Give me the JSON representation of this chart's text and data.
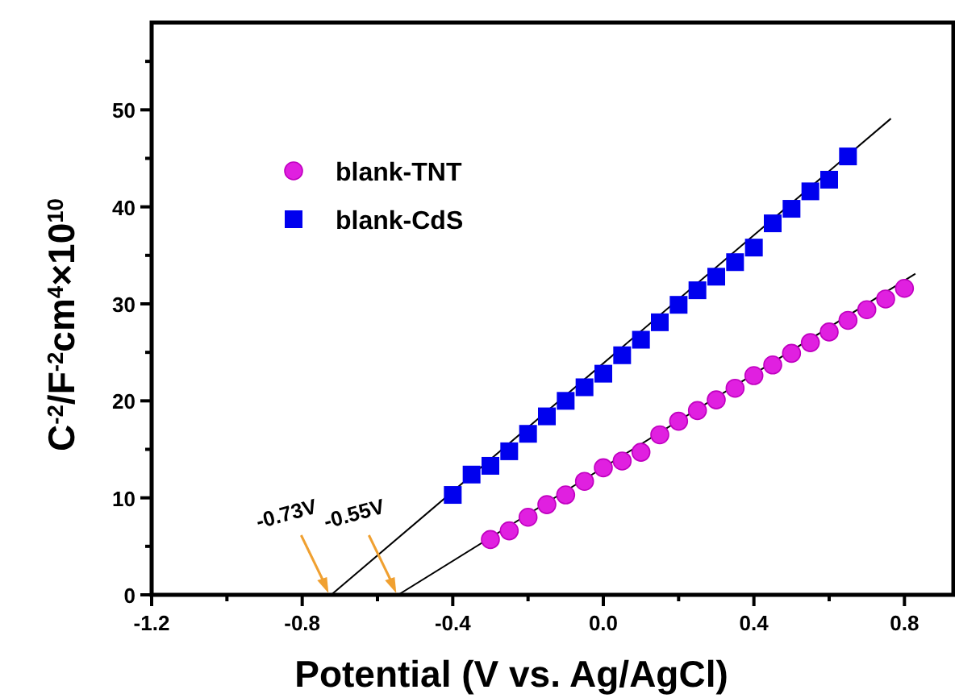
{
  "chart_data": {
    "type": "scatter",
    "xlabel": "Potential (V vs. Ag/AgCl)",
    "ylabel": "C$^{-2}$/F$^{-2}$cm$^{4}$×10$^{10}$",
    "xlim": [
      -1.2,
      0.93
    ],
    "ylim": [
      0,
      59
    ],
    "xticks": [
      -1.2,
      {
        "value": -1.0,
        "label": null
      },
      -0.8,
      {
        "value": -0.6,
        "label": null
      },
      -0.4,
      {
        "value": -0.2,
        "label": null
      },
      {
        "value": 0,
        "label": "0.0"
      },
      {
        "value": 0.2,
        "label": null
      },
      0.4,
      {
        "value": 0.6,
        "label": null
      },
      0.8
    ],
    "yticks": [
      0,
      {
        "value": 5,
        "label": null
      },
      10,
      {
        "value": 15,
        "label": null
      },
      20,
      {
        "value": 25,
        "label": null
      },
      30,
      {
        "value": 35,
        "label": null
      },
      40,
      {
        "value": 45,
        "label": null
      },
      50,
      {
        "value": 55,
        "label": null
      }
    ],
    "grid": false,
    "legend": "top left",
    "series": [
      {
        "name": "blank-TNT",
        "color": "#e020e0",
        "marker": "circle",
        "x": [
          -0.3,
          -0.25,
          -0.2,
          -0.15,
          -0.1,
          -0.05,
          0,
          0.05,
          0.1,
          0.15,
          0.2,
          0.25,
          0.3,
          0.35,
          0.4,
          0.45,
          0.5,
          0.55,
          0.6,
          0.65,
          0.7,
          0.75,
          0.8
        ],
        "values": [
          5.7,
          6.6,
          8.0,
          9.3,
          10.3,
          11.7,
          13.1,
          13.8,
          14.7,
          16.5,
          17.9,
          19.0,
          20.1,
          21.3,
          22.6,
          23.7,
          24.9,
          26.0,
          27.1,
          28.3,
          29.4,
          30.5,
          31.6
        ]
      },
      {
        "name": "blank-CdS",
        "color": "#0000ee",
        "marker": "square",
        "x": [
          -0.4,
          -0.35,
          -0.3,
          -0.25,
          -0.2,
          -0.15,
          -0.1,
          -0.05,
          0,
          0.05,
          0.1,
          0.15,
          0.2,
          0.25,
          0.3,
          0.35,
          0.4,
          0.45,
          0.5,
          0.55,
          0.6,
          0.65
        ],
        "values": [
          10.3,
          12.4,
          13.3,
          14.8,
          16.6,
          18.4,
          20.0,
          21.4,
          22.8,
          24.7,
          26.3,
          28.1,
          29.9,
          31.4,
          32.8,
          34.3,
          35.8,
          38.3,
          39.8,
          41.6,
          42.8,
          45.2
        ]
      },
      {
        "type": "line",
        "color": "#000000",
        "marker": "none",
        "x": [
          -0.545,
          0.829
        ],
        "values": [
          0,
          33.1
        ]
      },
      {
        "type": "line",
        "color": "#000000",
        "marker": "none",
        "x": [
          -0.723,
          0.764
        ],
        "values": [
          0,
          49.1
        ]
      }
    ],
    "annotations": [
      {
        "text": "-0.73V",
        "x": -0.73,
        "y": 0
      },
      {
        "text": "-0.55V",
        "x": -0.55,
        "y": 0
      }
    ]
  }
}
